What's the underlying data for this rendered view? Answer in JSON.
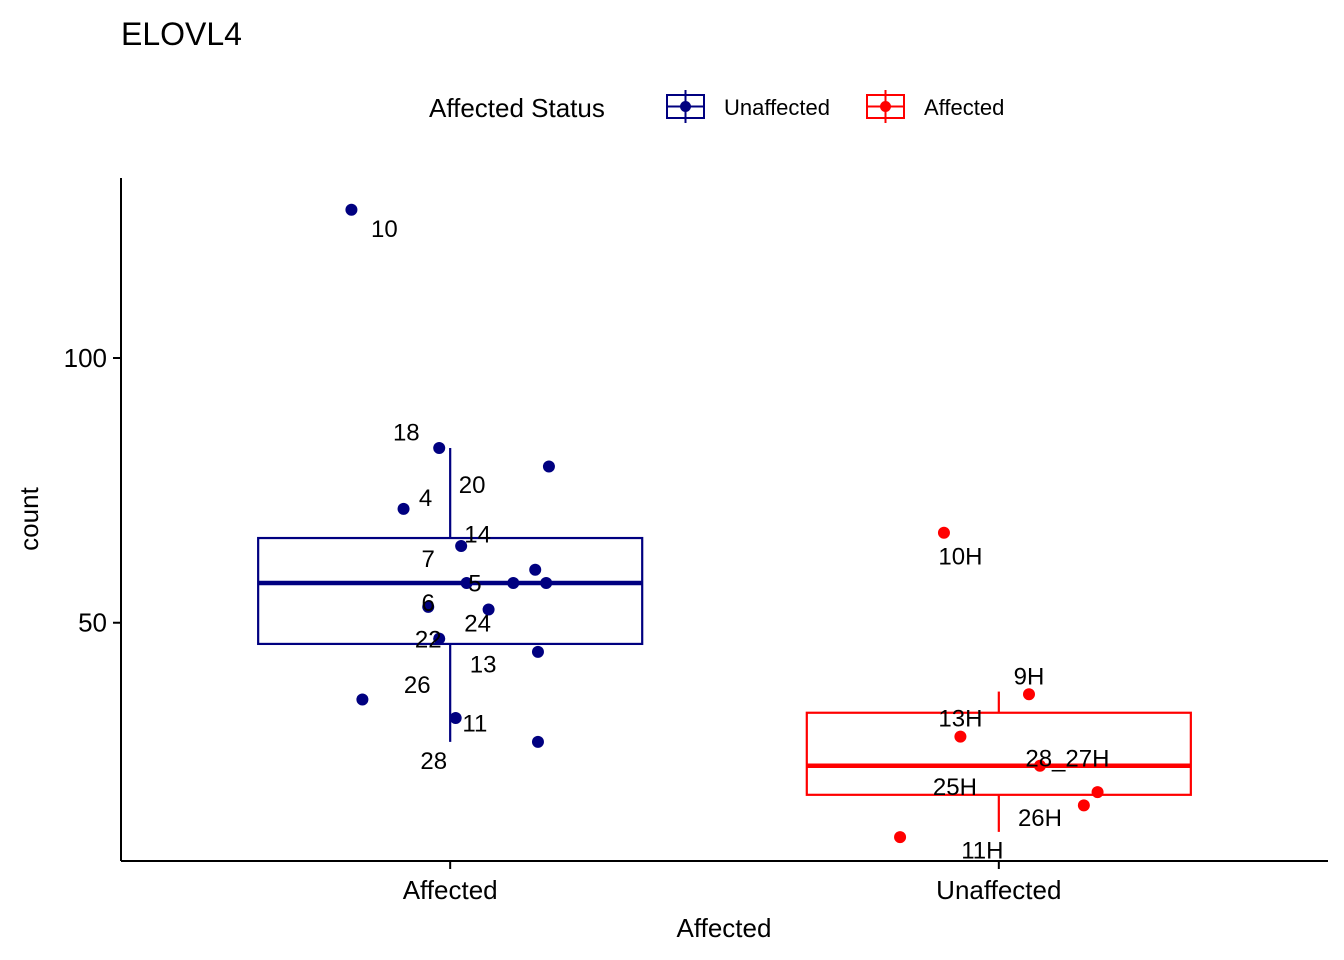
{
  "chart_data": {
    "type": "box",
    "title": "ELOVL4",
    "xlabel": "Affected",
    "ylabel": "count",
    "categories": [
      "Affected",
      "Unaffected"
    ],
    "ylim": [
      5,
      134
    ],
    "yticks": [
      50,
      100
    ],
    "grid": false,
    "legend": {
      "title": "Affected Status",
      "position": "top",
      "entries": [
        {
          "label": "Unaffected",
          "color": "#000080"
        },
        {
          "label": "Affected",
          "color": "#FF0000"
        }
      ]
    },
    "boxes": [
      {
        "category": "Affected",
        "color": "#000080",
        "whisker_low": 27.5,
        "q1": 46,
        "median": 57.5,
        "q3": 66,
        "whisker_high": 83
      },
      {
        "category": "Unaffected",
        "color": "#FF0000",
        "whisker_low": 10.5,
        "q1": 17.5,
        "median": 23,
        "q3": 33,
        "whisker_high": 37
      }
    ],
    "points": [
      {
        "category": "Affected",
        "label": "10",
        "y": 128,
        "jitter": -0.18,
        "lx": 0.06,
        "ly": -3.6
      },
      {
        "category": "Affected",
        "label": "18",
        "y": 83,
        "jitter": -0.02,
        "lx": -0.06,
        "ly": 2.9
      },
      {
        "category": "Affected",
        "label": "4",
        "y": 71.5,
        "jitter": -0.085,
        "lx": 0.04,
        "ly": 2.1
      },
      {
        "category": "Affected",
        "label": "20",
        "y": 79.5,
        "jitter": 0.18,
        "lx": -0.14,
        "ly": -3.5
      },
      {
        "category": "Affected",
        "label": "14",
        "y": 64.5,
        "jitter": 0.02,
        "lx": 0.03,
        "ly": 2.2
      },
      {
        "category": "Affected",
        "label": "",
        "y": 60,
        "jitter": 0.155,
        "lx": 0,
        "ly": 0
      },
      {
        "category": "Affected",
        "label": "7",
        "y": 57.5,
        "jitter": 0.03,
        "lx": -0.07,
        "ly": 4.5
      },
      {
        "category": "Affected",
        "label": "5",
        "y": 57.5,
        "jitter": 0.115,
        "lx": -0.07,
        "ly": -0.1
      },
      {
        "category": "Affected",
        "label": "",
        "y": 57.5,
        "jitter": 0.175,
        "lx": 0,
        "ly": 0
      },
      {
        "category": "Affected",
        "label": "6",
        "y": 53,
        "jitter": -0.04,
        "lx": 0,
        "ly": 0.7
      },
      {
        "category": "Affected",
        "label": "24",
        "y": 52.5,
        "jitter": 0.07,
        "lx": -0.02,
        "ly": -2.6
      },
      {
        "category": "Affected",
        "label": "22",
        "y": 47,
        "jitter": -0.02,
        "lx": -0.02,
        "ly": -0.2
      },
      {
        "category": "Affected",
        "label": "13",
        "y": 44.5,
        "jitter": 0.16,
        "lx": -0.1,
        "ly": -2.4
      },
      {
        "category": "Affected",
        "label": "26",
        "y": 35.5,
        "jitter": -0.16,
        "lx": 0.1,
        "ly": 2.7
      },
      {
        "category": "Affected",
        "label": "11",
        "y": 32,
        "jitter": 0.01,
        "lx": 0.035,
        "ly": -1
      },
      {
        "category": "Affected",
        "label": "28",
        "y": 27.5,
        "jitter": 0.16,
        "lx": -0.19,
        "ly": -3.6
      },
      {
        "category": "Unaffected",
        "label": "10H",
        "y": 67,
        "jitter": -0.1,
        "lx": 0.03,
        "ly": -4.5
      },
      {
        "category": "Unaffected",
        "label": "9H",
        "y": 36.5,
        "jitter": 0.055,
        "lx": -0.0,
        "ly": 3.3
      },
      {
        "category": "Unaffected",
        "label": "13H",
        "y": 28.5,
        "jitter": -0.07,
        "lx": -0.0,
        "ly": 3.4
      },
      {
        "category": "Unaffected",
        "label": "28_27H",
        "y": 23,
        "jitter": 0.075,
        "lx": 0.05,
        "ly": 1.4
      },
      {
        "category": "Unaffected",
        "label": "25H",
        "y": 18,
        "jitter": 0.18,
        "lx": -0.26,
        "ly": 1
      },
      {
        "category": "Unaffected",
        "label": "26H",
        "y": 15.5,
        "jitter": 0.155,
        "lx": -0.08,
        "ly": -2.4
      },
      {
        "category": "Unaffected",
        "label": "11H",
        "y": 9.5,
        "jitter": -0.18,
        "lx": 0.15,
        "ly": -2.5
      }
    ]
  }
}
